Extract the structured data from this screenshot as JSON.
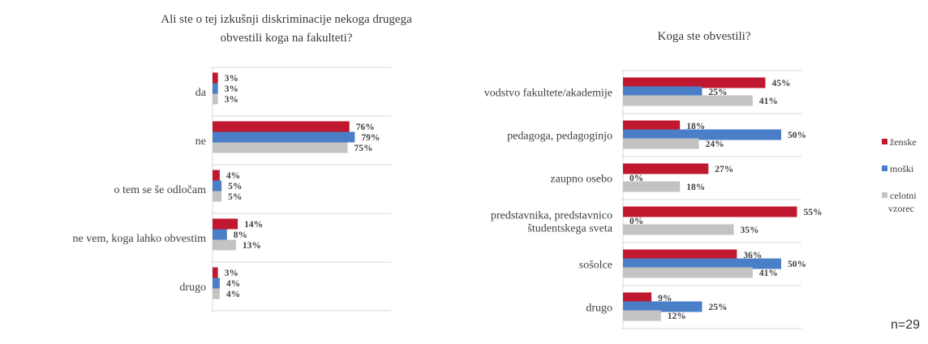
{
  "colors": {
    "zenske": "#C0182F",
    "moski": "#4A7EC7",
    "celotni": "#C3C3C3",
    "grid": "#d9d9d9"
  },
  "chart_data": [
    {
      "type": "bar",
      "orientation": "horizontal",
      "title": "Ali ste o tej izkušnji diskriminacije nekoga drugega obvestili koga na fakulteti?",
      "title_lines": [
        "Ali ste o tej izkušnji diskriminacije nekoga drugega",
        "obvestili koga na fakulteti?"
      ],
      "categories": [
        "da",
        "ne",
        "o tem se še odločam",
        "ne vem, koga lahko obvestim",
        "drugo"
      ],
      "category_lines": [
        [
          "da"
        ],
        [
          "ne"
        ],
        [
          "o tem se še odločam"
        ],
        [
          "ne vem, koga lahko obvestim"
        ],
        [
          "drugo"
        ]
      ],
      "series": [
        {
          "name": "ženske",
          "values": [
            3,
            76,
            4,
            14,
            3
          ]
        },
        {
          "name": "moški",
          "values": [
            3,
            79,
            5,
            8,
            4
          ]
        },
        {
          "name": "celotni vzorec",
          "values": [
            3,
            75,
            5,
            13,
            4
          ]
        }
      ],
      "value_suffix": "%",
      "xlim": [
        0,
        100
      ]
    },
    {
      "type": "bar",
      "orientation": "horizontal",
      "title": "Koga ste obvestili?",
      "title_lines": [
        "Koga ste obvestili?"
      ],
      "categories": [
        "vodstvo fakultete/akademije",
        "pedagoga, pedagoginjo",
        "zaupno osebo",
        "predstavnika, predstavnico študentskega sveta",
        "sošolce",
        "drugo"
      ],
      "category_lines": [
        [
          "vodstvo fakultete/akademije"
        ],
        [
          "pedagoga, pedagoginjo"
        ],
        [
          "zaupno osebo"
        ],
        [
          "predstavnika, predstavnico",
          "študentskega sveta"
        ],
        [
          "sošolce"
        ],
        [
          "drugo"
        ]
      ],
      "series": [
        {
          "name": "ženske",
          "values": [
            45,
            18,
            27,
            55,
            36,
            9
          ]
        },
        {
          "name": "moški",
          "values": [
            25,
            50,
            0,
            0,
            50,
            25
          ]
        },
        {
          "name": "celotni vzorec",
          "values": [
            41,
            24,
            18,
            35,
            41,
            12
          ]
        }
      ],
      "value_suffix": "%",
      "xlim": [
        0,
        100
      ]
    }
  ],
  "legend": {
    "items": [
      {
        "label_lines": [
          "ženske"
        ],
        "color_key": "zenske"
      },
      {
        "label_lines": [
          "moški"
        ],
        "color_key": "moski"
      },
      {
        "label_lines": [
          "celotni",
          "vzorec"
        ],
        "color_key": "celotni"
      }
    ]
  },
  "footnote": "n=29"
}
